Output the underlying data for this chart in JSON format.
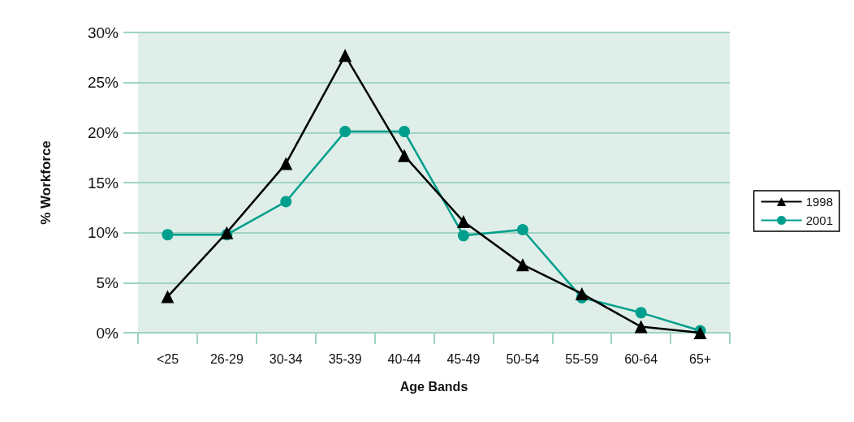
{
  "chart_data": {
    "type": "line",
    "xlabel": "Age Bands",
    "ylabel": "% Workforce",
    "categories": [
      "<25",
      "26-29",
      "30-34",
      "35-39",
      "40-44",
      "45-49",
      "50-54",
      "55-59",
      "60-64",
      "65+"
    ],
    "series": [
      {
        "name": "1998",
        "color": "#000000",
        "marker": "triangle",
        "values": [
          3.6,
          10.0,
          16.9,
          27.7,
          17.7,
          11.1,
          6.8,
          3.9,
          0.6,
          0.0
        ]
      },
      {
        "name": "2001",
        "color": "#009e8c",
        "marker": "circle",
        "values": [
          9.8,
          9.8,
          13.1,
          20.1,
          20.1,
          9.7,
          10.3,
          3.5,
          2.0,
          0.2
        ]
      }
    ],
    "ylim": [
      0,
      30
    ],
    "yticks": [
      {
        "value": 0,
        "label": "0%"
      },
      {
        "value": 5,
        "label": "5%"
      },
      {
        "value": 10,
        "label": "10%"
      },
      {
        "value": 15,
        "label": "15%"
      },
      {
        "value": 20,
        "label": "20%"
      },
      {
        "value": 25,
        "label": "25%"
      },
      {
        "value": 30,
        "label": "30%"
      }
    ],
    "grid": "y",
    "legend": "right",
    "line_style": "solid"
  }
}
